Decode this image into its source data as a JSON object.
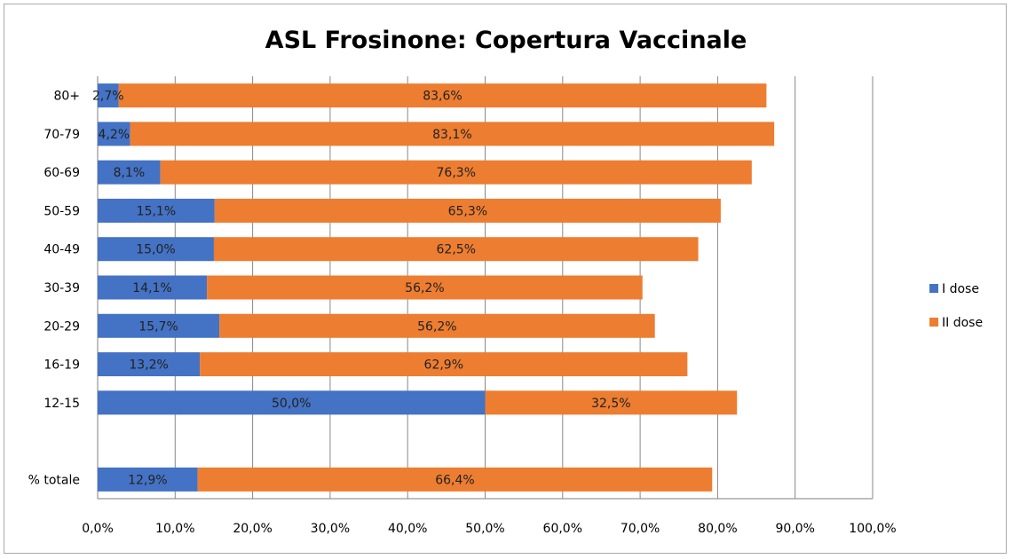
{
  "chart_data": {
    "type": "bar",
    "orientation": "horizontal",
    "stacked": true,
    "title": "ASL Frosinone: Copertura Vaccinale",
    "xlabel": "",
    "ylabel": "",
    "categories": [
      "80+",
      "70-79",
      "60-69",
      "50-59",
      "40-49",
      "30-39",
      "20-29",
      "16-19",
      "12-15",
      "",
      "% totale"
    ],
    "series": [
      {
        "name": "I dose",
        "color": "#4472C4",
        "values": [
          2.7,
          4.2,
          8.1,
          15.1,
          15.0,
          14.1,
          15.7,
          13.2,
          50.0,
          null,
          12.9
        ],
        "labels": [
          "2,7%",
          "4,2%",
          "8,1%",
          "15,1%",
          "15,0%",
          "14,1%",
          "15,7%",
          "13,2%",
          "50,0%",
          "",
          "12,9%"
        ]
      },
      {
        "name": "II dose",
        "color": "#ED7D31",
        "values": [
          83.6,
          83.1,
          76.3,
          65.3,
          62.5,
          56.2,
          56.2,
          62.9,
          32.5,
          null,
          66.4
        ],
        "labels": [
          "83,6%",
          "83,1%",
          "76,3%",
          "65,3%",
          "62,5%",
          "56,2%",
          "56,2%",
          "62,9%",
          "32,5%",
          "",
          "66,4%"
        ]
      }
    ],
    "xlim": [
      0,
      100
    ],
    "xticks": [
      0,
      10,
      20,
      30,
      40,
      50,
      60,
      70,
      80,
      90,
      100
    ],
    "xtick_labels": [
      "0,0%",
      "10,0%",
      "20,0%",
      "30,0%",
      "40,0%",
      "50,0%",
      "60,0%",
      "70,0%",
      "80,0%",
      "90,0%",
      "100,0%"
    ],
    "grid": true,
    "legend_position": "right"
  }
}
